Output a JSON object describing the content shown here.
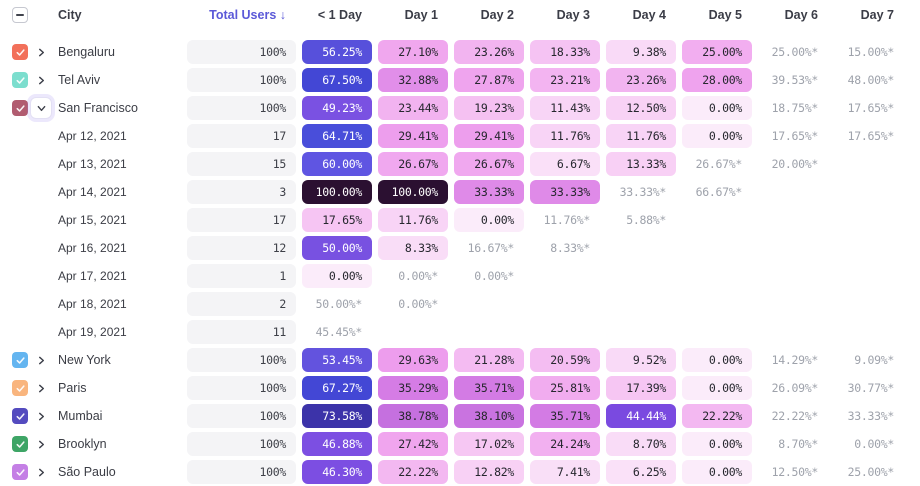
{
  "header": {
    "select_all_state": "indeterminate",
    "columns": [
      "City",
      "Total Users ↓",
      "< 1 Day",
      "Day 1",
      "Day 2",
      "Day 3",
      "Day 4",
      "Day 5",
      "Day 6",
      "Day 7"
    ],
    "sorted_column_index": 1
  },
  "colors": {
    "header_text": "#3B3D47",
    "sorted_header_text": "#5B59D8",
    "label_text": "#3B3D45",
    "estimate_text": "#9EA2AB",
    "cell_text_dark": "#26272E",
    "cell_text_light": "#FFFFFF",
    "total_pill_bg": "#F4F4F6",
    "heat_scale": [
      [
        0,
        "#FBECFA"
      ],
      [
        5,
        "#FAE4F8"
      ],
      [
        9,
        "#F9DBF7"
      ],
      [
        13,
        "#F8D1F5"
      ],
      [
        17,
        "#F6C7F3"
      ],
      [
        21,
        "#F4BCF2"
      ],
      [
        24,
        "#F2B1F0"
      ],
      [
        26,
        "#F1ABEF"
      ],
      [
        28,
        "#EFA3EE"
      ],
      [
        30,
        "#EC9CED"
      ],
      [
        33,
        "#E18DE9"
      ],
      [
        35,
        "#D67DE5"
      ],
      [
        37,
        "#CE77E2"
      ],
      [
        39,
        "#C46FDF"
      ],
      [
        42,
        "#9A5BE1"
      ],
      [
        44,
        "#7A49E0"
      ],
      [
        48,
        "#7D52E3"
      ],
      [
        51,
        "#7650E0"
      ],
      [
        53,
        "#6553DE"
      ],
      [
        56,
        "#5650DB"
      ],
      [
        60,
        "#5F55E2"
      ],
      [
        64,
        "#4B50DB"
      ],
      [
        66,
        "#464BD8"
      ],
      [
        68,
        "#4245D4"
      ],
      [
        74,
        "#3C32A6"
      ],
      [
        82,
        "#35226E"
      ],
      [
        100,
        "#2B1031"
      ]
    ],
    "white_text_threshold": 43
  },
  "rows": [
    {
      "type": "city",
      "label": "Bengaluru",
      "checkbox_color": "#F2705A",
      "checked": true,
      "expanded": false,
      "total": "100%",
      "cells": [
        {
          "t": "56.25%",
          "v": 56.25,
          "s": "heat"
        },
        {
          "t": "27.10%",
          "v": 27.1,
          "s": "heat"
        },
        {
          "t": "23.26%",
          "v": 23.26,
          "s": "heat"
        },
        {
          "t": "18.33%",
          "v": 18.33,
          "s": "heat"
        },
        {
          "t": "9.38%",
          "v": 9.38,
          "s": "heat"
        },
        {
          "t": "25.00%",
          "v": 25.0,
          "s": "heat"
        },
        {
          "t": "25.00%*",
          "v": 25.0,
          "s": "est"
        },
        {
          "t": "15.00%*",
          "v": 15.0,
          "s": "est"
        }
      ]
    },
    {
      "type": "city",
      "label": "Tel Aviv",
      "checkbox_color": "#7CDECE",
      "checked": true,
      "expanded": false,
      "total": "100%",
      "cells": [
        {
          "t": "67.50%",
          "v": 67.5,
          "s": "heat"
        },
        {
          "t": "32.88%",
          "v": 32.88,
          "s": "heat"
        },
        {
          "t": "27.87%",
          "v": 27.87,
          "s": "heat"
        },
        {
          "t": "23.21%",
          "v": 23.21,
          "s": "heat"
        },
        {
          "t": "23.26%",
          "v": 23.26,
          "s": "heat"
        },
        {
          "t": "28.00%",
          "v": 28.0,
          "s": "heat"
        },
        {
          "t": "39.53%*",
          "v": 39.53,
          "s": "est"
        },
        {
          "t": "48.00%*",
          "v": 48.0,
          "s": "est"
        }
      ]
    },
    {
      "type": "city",
      "label": "San Francisco",
      "checkbox_color": "#B15C70",
      "checked": true,
      "expanded": true,
      "total": "100%",
      "cells": [
        {
          "t": "49.23%",
          "v": 49.23,
          "s": "heat"
        },
        {
          "t": "23.44%",
          "v": 23.44,
          "s": "heat"
        },
        {
          "t": "19.23%",
          "v": 19.23,
          "s": "heat"
        },
        {
          "t": "11.43%",
          "v": 11.43,
          "s": "heat"
        },
        {
          "t": "12.50%",
          "v": 12.5,
          "s": "heat"
        },
        {
          "t": "0.00%",
          "v": 0.0,
          "s": "heat"
        },
        {
          "t": "18.75%*",
          "v": 18.75,
          "s": "est"
        },
        {
          "t": "17.65%*",
          "v": 17.65,
          "s": "est"
        }
      ]
    },
    {
      "type": "date",
      "label": "Apr 12, 2021",
      "total": "17",
      "cells": [
        {
          "t": "64.71%",
          "v": 64.71,
          "s": "heat"
        },
        {
          "t": "29.41%",
          "v": 29.41,
          "s": "heat"
        },
        {
          "t": "29.41%",
          "v": 29.41,
          "s": "heat"
        },
        {
          "t": "11.76%",
          "v": 11.76,
          "s": "heat"
        },
        {
          "t": "11.76%",
          "v": 11.76,
          "s": "heat"
        },
        {
          "t": "0.00%",
          "v": 0.0,
          "s": "heat"
        },
        {
          "t": "17.65%*",
          "v": 17.65,
          "s": "est"
        },
        {
          "t": "17.65%*",
          "v": 17.65,
          "s": "est"
        }
      ]
    },
    {
      "type": "date",
      "label": "Apr 13, 2021",
      "total": "15",
      "cells": [
        {
          "t": "60.00%",
          "v": 60.0,
          "s": "heat"
        },
        {
          "t": "26.67%",
          "v": 26.67,
          "s": "heat"
        },
        {
          "t": "26.67%",
          "v": 26.67,
          "s": "heat"
        },
        {
          "t": "6.67%",
          "v": 6.67,
          "s": "heat"
        },
        {
          "t": "13.33%",
          "v": 13.33,
          "s": "heat"
        },
        {
          "t": "26.67%*",
          "v": 26.67,
          "s": "est"
        },
        {
          "t": "20.00%*",
          "v": 20.0,
          "s": "est"
        },
        null
      ]
    },
    {
      "type": "date",
      "label": "Apr 14, 2021",
      "total": "3",
      "cells": [
        {
          "t": "100.00%",
          "v": 100.0,
          "s": "heat"
        },
        {
          "t": "100.00%",
          "v": 100.0,
          "s": "heat"
        },
        {
          "t": "33.33%",
          "v": 33.33,
          "s": "heat"
        },
        {
          "t": "33.33%",
          "v": 33.33,
          "s": "heat"
        },
        {
          "t": "33.33%*",
          "v": 33.33,
          "s": "est"
        },
        {
          "t": "66.67%*",
          "v": 66.67,
          "s": "est"
        },
        null,
        null
      ]
    },
    {
      "type": "date",
      "label": "Apr 15, 2021",
      "total": "17",
      "cells": [
        {
          "t": "17.65%",
          "v": 17.65,
          "s": "heat"
        },
        {
          "t": "11.76%",
          "v": 11.76,
          "s": "heat"
        },
        {
          "t": "0.00%",
          "v": 0.0,
          "s": "heat"
        },
        {
          "t": "11.76%*",
          "v": 11.76,
          "s": "est"
        },
        {
          "t": "5.88%*",
          "v": 5.88,
          "s": "est"
        },
        null,
        null,
        null
      ]
    },
    {
      "type": "date",
      "label": "Apr 16, 2021",
      "total": "12",
      "cells": [
        {
          "t": "50.00%",
          "v": 50.0,
          "s": "heat"
        },
        {
          "t": "8.33%",
          "v": 8.33,
          "s": "heat"
        },
        {
          "t": "16.67%*",
          "v": 16.67,
          "s": "est"
        },
        {
          "t": "8.33%*",
          "v": 8.33,
          "s": "est"
        },
        null,
        null,
        null,
        null
      ]
    },
    {
      "type": "date",
      "label": "Apr 17, 2021",
      "total": "1",
      "cells": [
        {
          "t": "0.00%",
          "v": 0.0,
          "s": "heat"
        },
        {
          "t": "0.00%*",
          "v": 0.0,
          "s": "est"
        },
        {
          "t": "0.00%*",
          "v": 0.0,
          "s": "est"
        },
        null,
        null,
        null,
        null,
        null
      ]
    },
    {
      "type": "date",
      "label": "Apr 18, 2021",
      "total": "2",
      "cells": [
        {
          "t": "50.00%*",
          "v": 50.0,
          "s": "est"
        },
        {
          "t": "0.00%*",
          "v": 0.0,
          "s": "est"
        },
        null,
        null,
        null,
        null,
        null,
        null
      ]
    },
    {
      "type": "date",
      "label": "Apr 19, 2021",
      "total": "11",
      "cells": [
        {
          "t": "45.45%*",
          "v": 45.45,
          "s": "est"
        },
        null,
        null,
        null,
        null,
        null,
        null,
        null
      ]
    },
    {
      "type": "city",
      "label": "New York",
      "checkbox_color": "#64B5F0",
      "checked": true,
      "expanded": false,
      "total": "100%",
      "cells": [
        {
          "t": "53.45%",
          "v": 53.45,
          "s": "heat"
        },
        {
          "t": "29.63%",
          "v": 29.63,
          "s": "heat"
        },
        {
          "t": "21.28%",
          "v": 21.28,
          "s": "heat"
        },
        {
          "t": "20.59%",
          "v": 20.59,
          "s": "heat"
        },
        {
          "t": "9.52%",
          "v": 9.52,
          "s": "heat"
        },
        {
          "t": "0.00%",
          "v": 0.0,
          "s": "heat"
        },
        {
          "t": "14.29%*",
          "v": 14.29,
          "s": "est"
        },
        {
          "t": "9.09%*",
          "v": 9.09,
          "s": "est"
        }
      ]
    },
    {
      "type": "city",
      "label": "Paris",
      "checkbox_color": "#F9B57E",
      "checked": true,
      "expanded": false,
      "total": "100%",
      "cells": [
        {
          "t": "67.27%",
          "v": 67.27,
          "s": "heat"
        },
        {
          "t": "35.29%",
          "v": 35.29,
          "s": "heat"
        },
        {
          "t": "35.71%",
          "v": 35.71,
          "s": "heat"
        },
        {
          "t": "25.81%",
          "v": 25.81,
          "s": "heat"
        },
        {
          "t": "17.39%",
          "v": 17.39,
          "s": "heat"
        },
        {
          "t": "0.00%",
          "v": 0.0,
          "s": "heat"
        },
        {
          "t": "26.09%*",
          "v": 26.09,
          "s": "est"
        },
        {
          "t": "30.77%*",
          "v": 30.77,
          "s": "est"
        }
      ]
    },
    {
      "type": "city",
      "label": "Mumbai",
      "checkbox_color": "#544BBF",
      "checked": true,
      "expanded": false,
      "total": "100%",
      "cells": [
        {
          "t": "73.58%",
          "v": 73.58,
          "s": "heat"
        },
        {
          "t": "38.78%",
          "v": 38.78,
          "s": "heat"
        },
        {
          "t": "38.10%",
          "v": 38.1,
          "s": "heat"
        },
        {
          "t": "35.71%",
          "v": 35.71,
          "s": "heat"
        },
        {
          "t": "44.44%",
          "v": 44.44,
          "s": "heat"
        },
        {
          "t": "22.22%",
          "v": 22.22,
          "s": "heat"
        },
        {
          "t": "22.22%*",
          "v": 22.22,
          "s": "est"
        },
        {
          "t": "33.33%*",
          "v": 33.33,
          "s": "est"
        }
      ]
    },
    {
      "type": "city",
      "label": "Brooklyn",
      "checkbox_color": "#3EA566",
      "checked": true,
      "expanded": false,
      "total": "100%",
      "cells": [
        {
          "t": "46.88%",
          "v": 46.88,
          "s": "heat"
        },
        {
          "t": "27.42%",
          "v": 27.42,
          "s": "heat"
        },
        {
          "t": "17.02%",
          "v": 17.02,
          "s": "heat"
        },
        {
          "t": "24.24%",
          "v": 24.24,
          "s": "heat"
        },
        {
          "t": "8.70%",
          "v": 8.7,
          "s": "heat"
        },
        {
          "t": "0.00%",
          "v": 0.0,
          "s": "heat"
        },
        {
          "t": "8.70%*",
          "v": 8.7,
          "s": "est"
        },
        {
          "t": "0.00%*",
          "v": 0.0,
          "s": "est"
        }
      ]
    },
    {
      "type": "city",
      "label": "São Paulo",
      "checkbox_color": "#C47FE5",
      "checked": true,
      "expanded": false,
      "total": "100%",
      "cells": [
        {
          "t": "46.30%",
          "v": 46.3,
          "s": "heat"
        },
        {
          "t": "22.22%",
          "v": 22.22,
          "s": "heat"
        },
        {
          "t": "12.82%",
          "v": 12.82,
          "s": "heat"
        },
        {
          "t": "7.41%",
          "v": 7.41,
          "s": "heat"
        },
        {
          "t": "6.25%",
          "v": 6.25,
          "s": "heat"
        },
        {
          "t": "0.00%",
          "v": 0.0,
          "s": "heat"
        },
        {
          "t": "12.50%*",
          "v": 12.5,
          "s": "est"
        },
        {
          "t": "25.00%*",
          "v": 25.0,
          "s": "est"
        }
      ]
    }
  ]
}
